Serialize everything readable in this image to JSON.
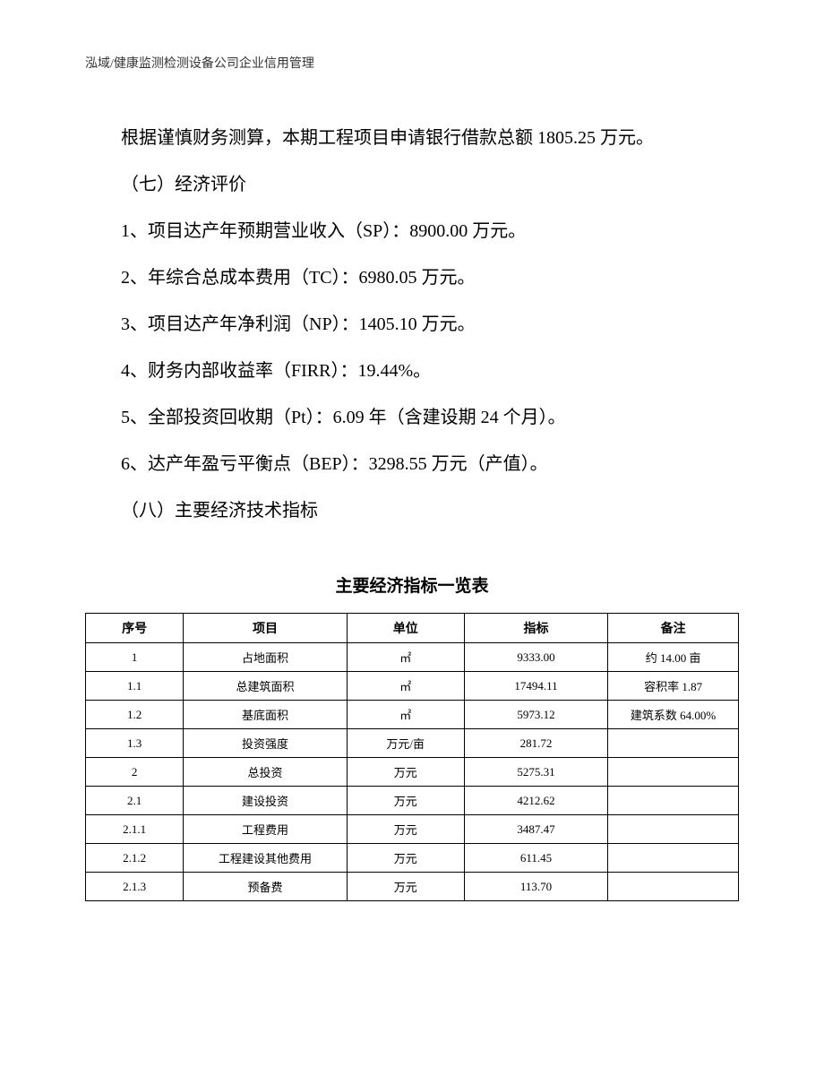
{
  "header": "泓域/健康监测检测设备公司企业信用管理",
  "intro_paragraph": "根据谨慎财务测算，本期工程项目申请银行借款总额 1805.25 万元。",
  "section_seven_title": "（七）经济评价",
  "eval_items": [
    "1、项目达产年预期营业收入（SP）：8900.00 万元。",
    "2、年综合总成本费用（TC）：6980.05 万元。",
    "3、项目达产年净利润（NP）：1405.10 万元。",
    "4、财务内部收益率（FIRR）：19.44%。",
    "5、全部投资回收期（Pt）：6.09 年（含建设期 24 个月）。",
    "6、达产年盈亏平衡点（BEP）：3298.55 万元（产值）。"
  ],
  "section_eight_title": "（八）主要经济技术指标",
  "table_title": "主要经济指标一览表",
  "table": {
    "columns": [
      "序号",
      "项目",
      "单位",
      "指标",
      "备注"
    ],
    "rows": [
      [
        "1",
        "占地面积",
        "㎡",
        "9333.00",
        "约 14.00 亩"
      ],
      [
        "1.1",
        "总建筑面积",
        "㎡",
        "17494.11",
        "容积率 1.87"
      ],
      [
        "1.2",
        "基底面积",
        "㎡",
        "5973.12",
        "建筑系数 64.00%"
      ],
      [
        "1.3",
        "投资强度",
        "万元/亩",
        "281.72",
        ""
      ],
      [
        "2",
        "总投资",
        "万元",
        "5275.31",
        ""
      ],
      [
        "2.1",
        "建设投资",
        "万元",
        "4212.62",
        ""
      ],
      [
        "2.1.1",
        "工程费用",
        "万元",
        "3487.47",
        ""
      ],
      [
        "2.1.2",
        "工程建设其他费用",
        "万元",
        "611.45",
        ""
      ],
      [
        "2.1.3",
        "预备费",
        "万元",
        "113.70",
        ""
      ]
    ]
  }
}
